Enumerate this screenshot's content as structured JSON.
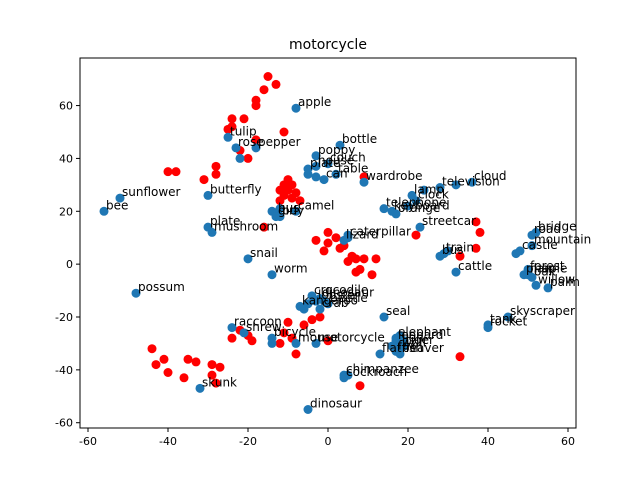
{
  "chart_data": {
    "type": "scatter",
    "title": "motorcycle",
    "xlabel": "",
    "ylabel": "",
    "xlim": [
      -62,
      62
    ],
    "ylim": [
      -62,
      78
    ],
    "xticks": [
      -60,
      -40,
      -20,
      0,
      20,
      40,
      60
    ],
    "yticks": [
      -60,
      -40,
      -20,
      0,
      20,
      40,
      60
    ],
    "grid": false,
    "colors": {
      "blue": "#1f77b4",
      "red": "#ff0000"
    },
    "labeled_points": [
      {
        "label": "apple",
        "x": -8,
        "y": 59
      },
      {
        "label": "bottle",
        "x": 3,
        "y": 45
      },
      {
        "label": "tulip",
        "x": -25,
        "y": 48
      },
      {
        "label": "rose",
        "x": -23,
        "y": 44
      },
      {
        "label": "pepper",
        "x": -18,
        "y": 44
      },
      {
        "label": "poppy",
        "x": -3,
        "y": 41
      },
      {
        "label": "couch",
        "x": 0,
        "y": 38
      },
      {
        "label": "house",
        "x": -3,
        "y": 37
      },
      {
        "label": "plate",
        "x": -5,
        "y": 36
      },
      {
        "label": "table",
        "x": 2,
        "y": 34
      },
      {
        "label": "can",
        "x": -1,
        "y": 32
      },
      {
        "label": "wardrobe",
        "x": 9,
        "y": 31
      },
      {
        "label": "television",
        "x": 28,
        "y": 29
      },
      {
        "label": "cloud",
        "x": 36,
        "y": 31
      },
      {
        "label": "lamp",
        "x": 21,
        "y": 26
      },
      {
        "label": "clock",
        "x": 22,
        "y": 24
      },
      {
        "label": "sunflower",
        "x": -52,
        "y": 25
      },
      {
        "label": "butterfly",
        "x": -30,
        "y": 26
      },
      {
        "label": "bee",
        "x": -56,
        "y": 20
      },
      {
        "label": "camel",
        "x": -8,
        "y": 20
      },
      {
        "label": "bus",
        "x": -13,
        "y": 19
      },
      {
        "label": "boy",
        "x": -12,
        "y": 18
      },
      {
        "label": "girl",
        "x": -13,
        "y": 18
      },
      {
        "label": "telephone",
        "x": 14,
        "y": 21
      },
      {
        "label": "keyboard",
        "x": 16,
        "y": 20
      },
      {
        "label": "orange",
        "x": 17,
        "y": 19
      },
      {
        "label": "plate",
        "x": -30,
        "y": 14
      },
      {
        "label": "mushroom",
        "x": -29,
        "y": 12
      },
      {
        "label": "caterpillar",
        "x": 5,
        "y": 10
      },
      {
        "label": "lizard",
        "x": 4,
        "y": 9
      },
      {
        "label": "streetcar",
        "x": 23,
        "y": 14
      },
      {
        "label": "bridge",
        "x": 52,
        "y": 12
      },
      {
        "label": "road",
        "x": 51,
        "y": 11
      },
      {
        "label": "mountain",
        "x": 51,
        "y": 7
      },
      {
        "label": "castle",
        "x": 48,
        "y": 5
      },
      {
        "label": "train",
        "x": 29,
        "y": 4
      },
      {
        "label": "bus",
        "x": 28,
        "y": 3
      },
      {
        "label": "snail",
        "x": -20,
        "y": 2
      },
      {
        "label": "cattle",
        "x": 32,
        "y": -3
      },
      {
        "label": "forest",
        "x": 50,
        "y": -3
      },
      {
        "label": "plain",
        "x": 49,
        "y": -4
      },
      {
        "label": "maple",
        "x": 50,
        "y": -4
      },
      {
        "label": "oak",
        "x": 51,
        "y": -5
      },
      {
        "label": "worm",
        "x": -14,
        "y": -4
      },
      {
        "label": "willow",
        "x": 52,
        "y": -8
      },
      {
        "label": "palm",
        "x": 55,
        "y": -9
      },
      {
        "label": "possum",
        "x": -48,
        "y": -11
      },
      {
        "label": "crocodile",
        "x": -4,
        "y": -12
      },
      {
        "label": "dinosaur",
        "x": -2,
        "y": -13
      },
      {
        "label": "lobster",
        "x": -3,
        "y": -14
      },
      {
        "label": "beetle",
        "x": 0,
        "y": -15
      },
      {
        "label": "kangaroo",
        "x": -7,
        "y": -16
      },
      {
        "label": "crab",
        "x": -2,
        "y": -17
      },
      {
        "label": "seal",
        "x": 14,
        "y": -20
      },
      {
        "label": "skyscraper",
        "x": 45,
        "y": -20
      },
      {
        "label": "tank",
        "x": 40,
        "y": -23
      },
      {
        "label": "rocket",
        "x": 40,
        "y": -24
      },
      {
        "label": "raccoon",
        "x": -24,
        "y": -24
      },
      {
        "label": "shrew",
        "x": -21,
        "y": -26
      },
      {
        "label": "bicycle",
        "x": -14,
        "y": -28
      },
      {
        "label": "mouse",
        "x": -8,
        "y": -30
      },
      {
        "label": "motorcycle",
        "x": -3,
        "y": -30
      },
      {
        "label": "elephant",
        "x": 17,
        "y": -28
      },
      {
        "label": "leopard",
        "x": 17,
        "y": -29
      },
      {
        "label": "lion",
        "x": 18,
        "y": -30
      },
      {
        "label": "tiger",
        "x": 19,
        "y": -31
      },
      {
        "label": "wolf",
        "x": 18,
        "y": -32
      },
      {
        "label": "fox",
        "x": 17,
        "y": -33
      },
      {
        "label": "beaver",
        "x": 18,
        "y": -34
      },
      {
        "label": "flatfish",
        "x": 13,
        "y": -34
      },
      {
        "label": "skunk",
        "x": -32,
        "y": -47
      },
      {
        "label": "chimpanzee",
        "x": 4,
        "y": -42
      },
      {
        "label": "cockroach",
        "x": 4,
        "y": -43
      },
      {
        "label": "dinosaur",
        "x": -5,
        "y": -55
      }
    ],
    "unlabeled_blue_points": [
      {
        "x": -22,
        "y": 40
      },
      {
        "x": -5,
        "y": 34
      },
      {
        "x": -3,
        "y": 33
      },
      {
        "x": 20,
        "y": 22
      },
      {
        "x": 24,
        "y": 28
      },
      {
        "x": 32,
        "y": 30
      },
      {
        "x": -14,
        "y": 20
      },
      {
        "x": -12,
        "y": 21
      },
      {
        "x": 5,
        "y": 11
      },
      {
        "x": 30,
        "y": 5
      },
      {
        "x": 47,
        "y": 4
      },
      {
        "x": 50,
        "y": -2
      },
      {
        "x": -1,
        "y": -14
      },
      {
        "x": -5,
        "y": -15
      },
      {
        "x": -6,
        "y": -17
      },
      {
        "x": 18,
        "y": -27
      },
      {
        "x": 19,
        "y": -29
      },
      {
        "x": 16,
        "y": -31
      },
      {
        "x": -14,
        "y": -30
      },
      {
        "x": 5,
        "y": -42
      }
    ],
    "red_points": [
      {
        "x": -15,
        "y": 71
      },
      {
        "x": -13,
        "y": 68
      },
      {
        "x": -16,
        "y": 66
      },
      {
        "x": -18,
        "y": 62
      },
      {
        "x": -18,
        "y": 60
      },
      {
        "x": -24,
        "y": 55
      },
      {
        "x": -21,
        "y": 55
      },
      {
        "x": -24,
        "y": 52
      },
      {
        "x": -25,
        "y": 51
      },
      {
        "x": -11,
        "y": 50
      },
      {
        "x": -22,
        "y": 43
      },
      {
        "x": -20,
        "y": 40
      },
      {
        "x": -18,
        "y": 47
      },
      {
        "x": -40,
        "y": 35
      },
      {
        "x": -38,
        "y": 35
      },
      {
        "x": -28,
        "y": 37
      },
      {
        "x": -31,
        "y": 32
      },
      {
        "x": -28,
        "y": 34
      },
      {
        "x": -10,
        "y": 32
      },
      {
        "x": -11,
        "y": 30
      },
      {
        "x": -9,
        "y": 30
      },
      {
        "x": -12,
        "y": 28
      },
      {
        "x": -10,
        "y": 28
      },
      {
        "x": -8,
        "y": 27
      },
      {
        "x": -11,
        "y": 26
      },
      {
        "x": -9,
        "y": 25
      },
      {
        "x": -7,
        "y": 24
      },
      {
        "x": -12,
        "y": 24
      },
      {
        "x": -16,
        "y": 14
      },
      {
        "x": 9,
        "y": 33
      },
      {
        "x": 0,
        "y": 12
      },
      {
        "x": 2,
        "y": 10
      },
      {
        "x": -3,
        "y": 9
      },
      {
        "x": 0,
        "y": 8
      },
      {
        "x": 4,
        "y": 7
      },
      {
        "x": -1,
        "y": 5
      },
      {
        "x": 3,
        "y": 6
      },
      {
        "x": 6,
        "y": 3
      },
      {
        "x": 7,
        "y": 2
      },
      {
        "x": 5,
        "y": 1
      },
      {
        "x": 9,
        "y": 2
      },
      {
        "x": 7,
        "y": -3
      },
      {
        "x": 8,
        "y": -2
      },
      {
        "x": 12,
        "y": 2
      },
      {
        "x": 11,
        "y": -4
      },
      {
        "x": 22,
        "y": 11
      },
      {
        "x": 37,
        "y": 16
      },
      {
        "x": 38,
        "y": 12
      },
      {
        "x": 37,
        "y": 6
      },
      {
        "x": 33,
        "y": 3
      },
      {
        "x": -10,
        "y": -22
      },
      {
        "x": -6,
        "y": -23
      },
      {
        "x": -4,
        "y": -21
      },
      {
        "x": -2,
        "y": -20
      },
      {
        "x": -22,
        "y": -25
      },
      {
        "x": -20,
        "y": -27
      },
      {
        "x": -24,
        "y": -28
      },
      {
        "x": -19,
        "y": -29
      },
      {
        "x": -11,
        "y": -26
      },
      {
        "x": -9,
        "y": -28
      },
      {
        "x": -12,
        "y": -30
      },
      {
        "x": -8,
        "y": -34
      },
      {
        "x": 0,
        "y": -29
      },
      {
        "x": -44,
        "y": -32
      },
      {
        "x": -41,
        "y": -36
      },
      {
        "x": -43,
        "y": -38
      },
      {
        "x": -40,
        "y": -41
      },
      {
        "x": -36,
        "y": -43
      },
      {
        "x": -35,
        "y": -36
      },
      {
        "x": -33,
        "y": -37
      },
      {
        "x": -29,
        "y": -38
      },
      {
        "x": -27,
        "y": -39
      },
      {
        "x": -29,
        "y": -42
      },
      {
        "x": -28,
        "y": -45
      },
      {
        "x": 8,
        "y": -46
      },
      {
        "x": 33,
        "y": -35
      }
    ]
  }
}
